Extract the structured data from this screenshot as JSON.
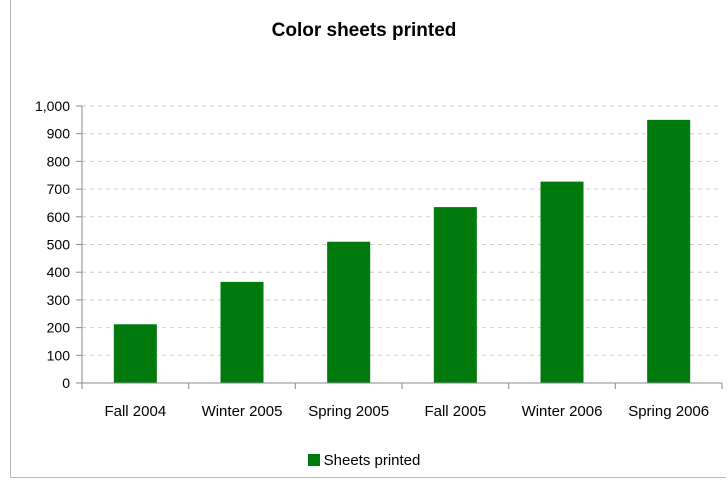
{
  "chart_data": {
    "type": "bar",
    "title": "Color sheets printed",
    "xlabel": "",
    "ylabel": "",
    "categories": [
      "Fall 2004",
      "Winter 2005",
      "Spring 2005",
      "Fall 2005",
      "Winter 2006",
      "Spring 2006"
    ],
    "series": [
      {
        "name": "Sheets printed",
        "values": [
          212,
          365,
          510,
          635,
          727,
          950
        ],
        "color": "#007a0c"
      }
    ],
    "ylim": [
      0,
      1000
    ],
    "yticks": [
      0,
      100,
      200,
      300,
      400,
      500,
      600,
      700,
      800,
      900,
      1000
    ],
    "ytick_labels": [
      "0",
      "100",
      "200",
      "300",
      "400",
      "500",
      "600",
      "700",
      "800",
      "900",
      "1,000"
    ],
    "grid": true,
    "legend_position": "bottom"
  }
}
